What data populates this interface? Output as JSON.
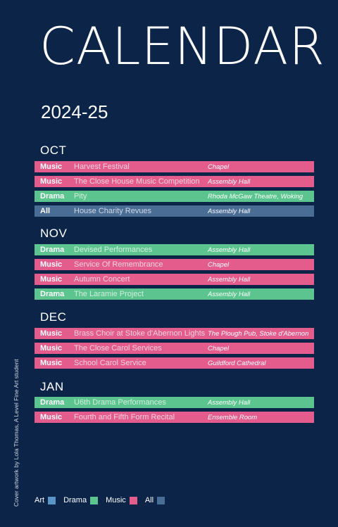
{
  "title": "CALENDAR",
  "year": "2024-25",
  "colors": {
    "background": "#0b2447",
    "Music": "#e35c8b",
    "Drama": "#5cc48e",
    "All": "#4a6d96",
    "Art": "#5b95c8"
  },
  "months": [
    {
      "name": "OCT",
      "events": [
        {
          "category": "Music",
          "event": "Harvest Festival",
          "location": "Chapel"
        },
        {
          "category": "Music",
          "event": "The Close House Music Competition",
          "location": "Assembly Hall"
        },
        {
          "category": "Drama",
          "event": "Pity",
          "location": "Rhoda McGaw Theatre, Woking"
        },
        {
          "category": "All",
          "event": "House Charity Revues",
          "location": "Assembly Hall"
        }
      ]
    },
    {
      "name": "NOV",
      "events": [
        {
          "category": "Drama",
          "event": "Devised Performances",
          "location": "Assembly Hall"
        },
        {
          "category": "Music",
          "event": "Service Of Remembrance",
          "location": "Chapel"
        },
        {
          "category": "Music",
          "event": "Autumn Concert",
          "location": "Assembly Hall"
        },
        {
          "category": "Drama",
          "event": "The Laramie Project",
          "location": "Assembly Hall"
        }
      ]
    },
    {
      "name": "DEC",
      "events": [
        {
          "category": "Music",
          "event": "Brass Choir at Stoke d'Abernon Lights",
          "location": "The Plough Pub, Stoke d'Abernon"
        },
        {
          "category": "Music",
          "event": "The Close Carol Services",
          "location": "Chapel"
        },
        {
          "category": "Music",
          "event": "School Carol Service",
          "location": "Guildford Cathedral"
        }
      ]
    },
    {
      "name": "JAN",
      "events": [
        {
          "category": "Drama",
          "event": "U6th Drama Performances",
          "location": "Assembly Hall"
        },
        {
          "category": "Music",
          "event": "Fourth and Fifth Form Recital",
          "location": "Ensemble Room"
        }
      ]
    }
  ],
  "credit": "Cover artwork by Lola Thomas, A Level Fine Art student",
  "legend": [
    {
      "label": "Art",
      "color": "#5b95c8"
    },
    {
      "label": "Drama",
      "color": "#5cc48e"
    },
    {
      "label": "Music",
      "color": "#e35c8b"
    },
    {
      "label": "All",
      "color": "#4a6d96"
    }
  ]
}
